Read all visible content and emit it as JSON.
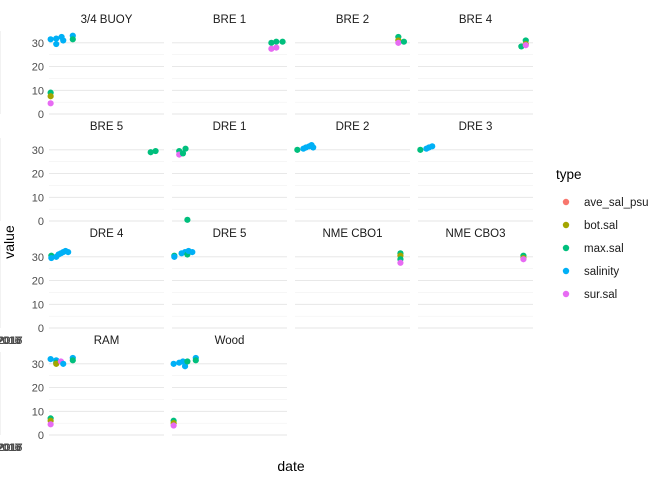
{
  "chart_data": {
    "type": "scatter",
    "xlabel": "date",
    "ylabel": "value",
    "ylim": [
      0,
      35
    ],
    "y_ticks": [
      0,
      10,
      20,
      30
    ],
    "x_ticks": [
      "Jul 2016",
      "Oct 2016",
      "Jan 2017",
      "Apr 2017",
      "Jul 2017"
    ],
    "x_tick_labels": [
      "Jul 2016",
      "Oct 2016",
      "Jan 2017",
      "Apr 2017",
      "Jul 2017"
    ],
    "xlim": [
      "2016-05-15",
      "2017-09-20"
    ],
    "grid": true,
    "legend": {
      "title": "type",
      "position": "right",
      "entries": [
        {
          "name": "ave_sal_psu",
          "color": "#F8766D"
        },
        {
          "name": "bot.sal",
          "color": "#A3A500"
        },
        {
          "name": "max.sal",
          "color": "#00BF7D"
        },
        {
          "name": "salinity",
          "color": "#00B0F6"
        },
        {
          "name": "sur.sal",
          "color": "#E76BF3"
        }
      ]
    },
    "panels": [
      {
        "title": "3/4 BUOY",
        "points": [
          [
            "2016-05-22",
            31.5,
            "salinity"
          ],
          [
            "2016-06-15",
            31.8,
            "salinity"
          ],
          [
            "2016-06-15",
            29.5,
            "salinity"
          ],
          [
            "2016-07-08",
            32.5,
            "salinity"
          ],
          [
            "2016-07-15",
            31.0,
            "salinity"
          ],
          [
            "2016-08-25",
            33.0,
            "salinity"
          ],
          [
            "2016-08-25",
            31.5,
            "max.sal"
          ],
          [
            "2016-05-22",
            9.0,
            "max.sal"
          ],
          [
            "2016-05-22",
            7.5,
            "bot.sal"
          ],
          [
            "2016-05-22",
            4.5,
            "sur.sal"
          ]
        ]
      },
      {
        "title": "BRE 1",
        "points": [
          [
            "2017-07-15",
            30.0,
            "max.sal"
          ],
          [
            "2017-07-15",
            27.5,
            "sur.sal"
          ],
          [
            "2017-08-05",
            30.5,
            "max.sal"
          ],
          [
            "2017-08-05",
            28.0,
            "sur.sal"
          ],
          [
            "2017-09-01",
            30.5,
            "max.sal"
          ]
        ]
      },
      {
        "title": "BRE 2",
        "points": [
          [
            "2017-08-01",
            32.5,
            "max.sal"
          ],
          [
            "2017-08-01",
            31.0,
            "bot.sal"
          ],
          [
            "2017-08-01",
            30.0,
            "sur.sal"
          ],
          [
            "2017-08-25",
            30.5,
            "max.sal"
          ]
        ]
      },
      {
        "title": "BRE 4",
        "points": [
          [
            "2017-08-01",
            28.5,
            "max.sal"
          ],
          [
            "2017-08-20",
            31.0,
            "max.sal"
          ],
          [
            "2017-08-20",
            29.5,
            "bot.sal"
          ],
          [
            "2017-08-20",
            29.0,
            "sur.sal"
          ]
        ]
      },
      {
        "title": "BRE 5",
        "points": [
          [
            "2017-07-25",
            29.0,
            "max.sal"
          ],
          [
            "2017-08-15",
            29.5,
            "max.sal"
          ]
        ]
      },
      {
        "title": "DRE 1",
        "points": [
          [
            "2016-06-15",
            29.5,
            "max.sal"
          ],
          [
            "2016-06-15",
            28.0,
            "sur.sal"
          ],
          [
            "2016-07-01",
            28.5,
            "max.sal"
          ],
          [
            "2016-07-12",
            30.5,
            "max.sal"
          ],
          [
            "2016-07-20",
            0.5,
            "max.sal"
          ]
        ]
      },
      {
        "title": "DRE 2",
        "points": [
          [
            "2016-05-25",
            30.0,
            "max.sal"
          ],
          [
            "2016-06-20",
            30.5,
            "salinity"
          ],
          [
            "2016-07-01",
            31.0,
            "salinity"
          ],
          [
            "2016-07-15",
            31.5,
            "salinity"
          ],
          [
            "2016-07-25",
            32.0,
            "salinity"
          ],
          [
            "2016-08-01",
            31.0,
            "salinity"
          ]
        ]
      },
      {
        "title": "DRE 3",
        "points": [
          [
            "2016-05-25",
            30.0,
            "max.sal"
          ],
          [
            "2016-06-20",
            30.5,
            "salinity"
          ],
          [
            "2016-07-01",
            31.0,
            "salinity"
          ],
          [
            "2016-07-15",
            31.5,
            "salinity"
          ]
        ]
      },
      {
        "title": "DRE 4",
        "points": [
          [
            "2016-05-25",
            30.5,
            "max.sal"
          ],
          [
            "2016-05-25",
            29.5,
            "salinity"
          ],
          [
            "2016-06-15",
            30.0,
            "salinity"
          ],
          [
            "2016-06-25",
            31.0,
            "salinity"
          ],
          [
            "2016-07-05",
            31.5,
            "salinity"
          ],
          [
            "2016-07-15",
            32.0,
            "salinity"
          ],
          [
            "2016-07-25",
            32.5,
            "salinity"
          ],
          [
            "2016-08-05",
            32.0,
            "salinity"
          ]
        ]
      },
      {
        "title": "DRE 5",
        "points": [
          [
            "2016-05-25",
            30.5,
            "max.sal"
          ],
          [
            "2016-05-25",
            30.0,
            "salinity"
          ],
          [
            "2016-06-25",
            31.5,
            "salinity"
          ],
          [
            "2016-07-10",
            32.0,
            "salinity"
          ],
          [
            "2016-07-20",
            31.0,
            "max.sal"
          ],
          [
            "2016-07-25",
            32.5,
            "salinity"
          ],
          [
            "2016-08-10",
            32.0,
            "salinity"
          ]
        ]
      },
      {
        "title": "NME CBO1",
        "points": [
          [
            "2017-08-10",
            31.5,
            "max.sal"
          ],
          [
            "2017-08-10",
            30.5,
            "bot.sal"
          ],
          [
            "2017-08-10",
            29.0,
            "max.sal"
          ],
          [
            "2017-08-10",
            27.5,
            "sur.sal"
          ]
        ]
      },
      {
        "title": "NME CBO3",
        "points": [
          [
            "2017-08-10",
            30.5,
            "max.sal"
          ],
          [
            "2017-08-10",
            29.5,
            "bot.sal"
          ],
          [
            "2017-08-10",
            29.0,
            "sur.sal"
          ]
        ]
      },
      {
        "title": "RAM",
        "points": [
          [
            "2016-05-22",
            32.0,
            "salinity"
          ],
          [
            "2016-06-15",
            31.5,
            "salinity"
          ],
          [
            "2016-06-15",
            30.5,
            "max.sal"
          ],
          [
            "2016-06-15",
            30.0,
            "bot.sal"
          ],
          [
            "2016-07-05",
            31.0,
            "sur.sal"
          ],
          [
            "2016-07-15",
            30.0,
            "salinity"
          ],
          [
            "2016-08-25",
            32.5,
            "salinity"
          ],
          [
            "2016-08-25",
            31.5,
            "max.sal"
          ],
          [
            "2016-05-22",
            7.0,
            "max.sal"
          ],
          [
            "2016-05-22",
            6.0,
            "bot.sal"
          ],
          [
            "2016-05-22",
            4.5,
            "sur.sal"
          ]
        ]
      },
      {
        "title": "Wood",
        "points": [
          [
            "2016-05-22",
            30.0,
            "salinity"
          ],
          [
            "2016-06-15",
            30.5,
            "salinity"
          ],
          [
            "2016-07-01",
            31.0,
            "salinity"
          ],
          [
            "2016-07-10",
            29.0,
            "salinity"
          ],
          [
            "2016-07-20",
            31.0,
            "max.sal"
          ],
          [
            "2016-08-25",
            32.5,
            "salinity"
          ],
          [
            "2016-08-25",
            31.5,
            "max.sal"
          ],
          [
            "2016-05-22",
            6.0,
            "max.sal"
          ],
          [
            "2016-05-22",
            5.0,
            "bot.sal"
          ],
          [
            "2016-05-22",
            4.0,
            "sur.sal"
          ]
        ]
      }
    ]
  }
}
